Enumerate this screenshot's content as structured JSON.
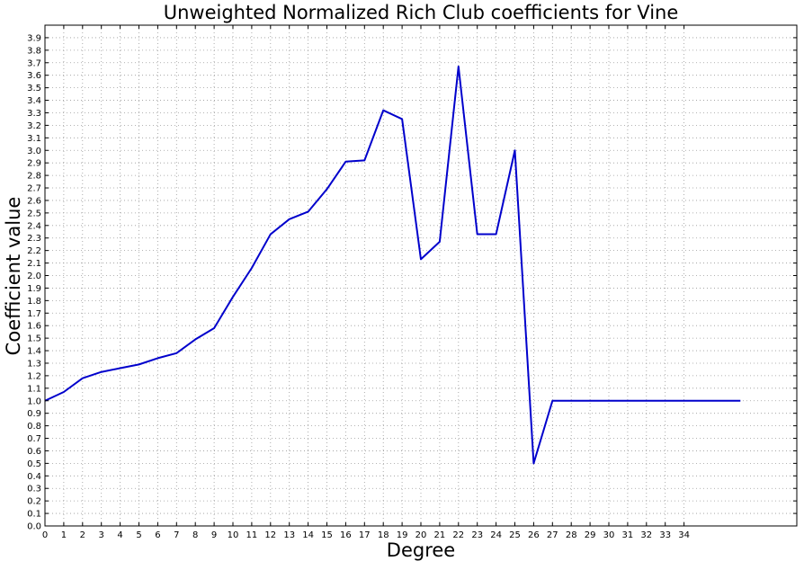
{
  "chart_data": {
    "type": "line",
    "title": "Unweighted Normalized Rich Club coefficients for Vine",
    "xlabel": "Degree",
    "ylabel": "Coefficient value",
    "xlim": [
      0,
      40
    ],
    "ylim": [
      0,
      4.0
    ],
    "grid": true,
    "line_color": "#0000cc",
    "x_ticks": [
      0,
      1,
      2,
      3,
      4,
      5,
      6,
      7,
      8,
      9,
      10,
      11,
      12,
      13,
      14,
      15,
      16,
      17,
      18,
      19,
      20,
      21,
      22,
      23,
      24,
      25,
      26,
      27,
      28,
      29,
      30,
      31,
      32,
      33,
      34
    ],
    "y_ticks": [
      0.0,
      0.1,
      0.2,
      0.3,
      0.4,
      0.5,
      0.6,
      0.7,
      0.8,
      0.9,
      1.0,
      1.1,
      1.2,
      1.3,
      1.4,
      1.5,
      1.6,
      1.7,
      1.8,
      1.9,
      2.0,
      2.1,
      2.2,
      2.3,
      2.4,
      2.5,
      2.6,
      2.7,
      2.8,
      2.9,
      3.0,
      3.1,
      3.2,
      3.3,
      3.4,
      3.5,
      3.6,
      3.7,
      3.8,
      3.9
    ],
    "series": [
      {
        "x": [
          0,
          1,
          2,
          3,
          4,
          5,
          6,
          7,
          8,
          9,
          10,
          11,
          12,
          13,
          14,
          15,
          16,
          17,
          18,
          19,
          20,
          21,
          22,
          23,
          24,
          25,
          26,
          27,
          28,
          29,
          30,
          31,
          32,
          33,
          34,
          35,
          36,
          37
        ],
        "values": [
          1.0,
          1.07,
          1.18,
          1.23,
          1.26,
          1.29,
          1.34,
          1.38,
          1.49,
          1.58,
          1.83,
          2.06,
          2.33,
          2.45,
          2.51,
          2.69,
          2.91,
          2.92,
          3.32,
          3.25,
          2.13,
          2.27,
          3.67,
          2.33,
          2.33,
          3.0,
          0.5,
          1.0,
          1.0,
          1.0,
          1.0,
          1.0,
          1.0,
          1.0,
          1.0,
          1.0,
          1.0,
          1.0
        ]
      }
    ]
  }
}
